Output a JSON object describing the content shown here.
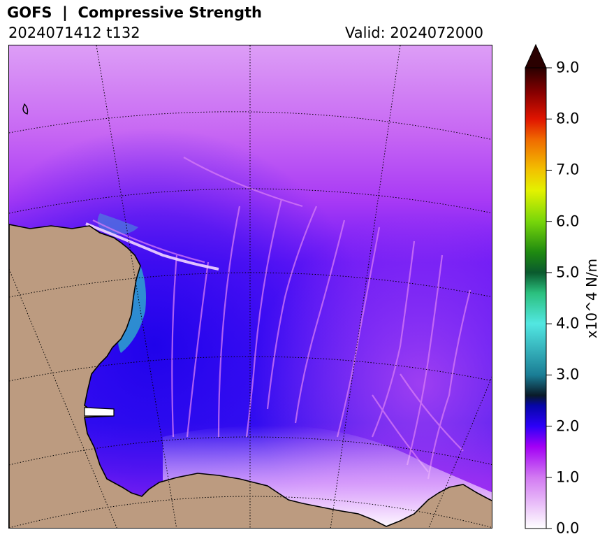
{
  "header": {
    "title": "GOFS  |  Compressive Strength",
    "run_label": "2024071412 t132",
    "valid_label": "Valid: 2024072000"
  },
  "map": {
    "land_color": "#bc9b80",
    "coastline_color": "#000000",
    "graticule_color": "#000000",
    "graticule_style": "dotted"
  },
  "colorbar": {
    "label": "x10^4 N/m",
    "min": 0.0,
    "max": 9.0,
    "extend": "max",
    "ticks": [
      "0.0",
      "1.0",
      "2.0",
      "3.0",
      "4.0",
      "5.0",
      "6.0",
      "7.0",
      "8.0",
      "9.0"
    ],
    "colormap": [
      {
        "value": 0.0,
        "color": "#ffffff"
      },
      {
        "value": 1.0,
        "color": "#d27af2"
      },
      {
        "value": 1.6,
        "color": "#a200f5"
      },
      {
        "value": 2.0,
        "color": "#2c00f8"
      },
      {
        "value": 2.4,
        "color": "#0606a8"
      },
      {
        "value": 2.6,
        "color": "#0a1a28"
      },
      {
        "value": 3.0,
        "color": "#1a7d95"
      },
      {
        "value": 4.0,
        "color": "#52e7e2"
      },
      {
        "value": 4.6,
        "color": "#2bc07e"
      },
      {
        "value": 5.0,
        "color": "#0a5a2e"
      },
      {
        "value": 5.4,
        "color": "#1f8a10"
      },
      {
        "value": 6.0,
        "color": "#78d60a"
      },
      {
        "value": 6.6,
        "color": "#e3f200"
      },
      {
        "value": 7.0,
        "color": "#f2c200"
      },
      {
        "value": 7.6,
        "color": "#f06a00"
      },
      {
        "value": 8.0,
        "color": "#e01400"
      },
      {
        "value": 8.5,
        "color": "#8a0000"
      },
      {
        "value": 9.0,
        "color": "#2a0000"
      }
    ]
  }
}
